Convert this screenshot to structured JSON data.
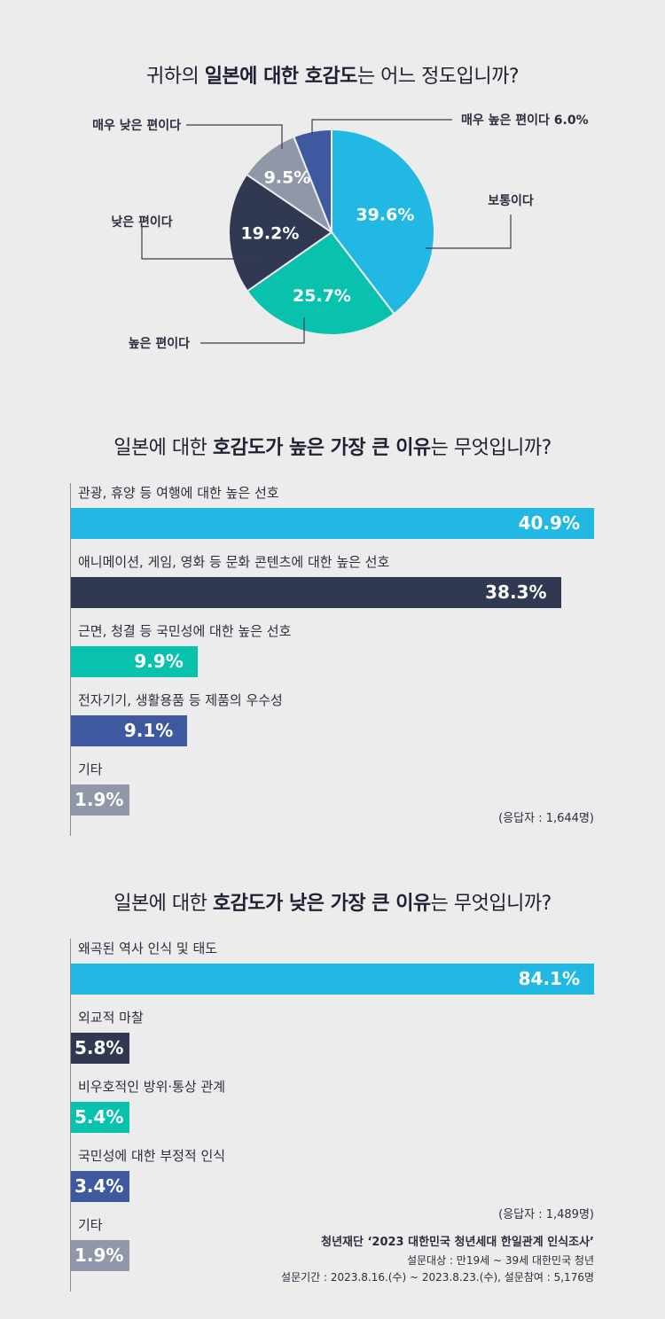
{
  "pie_question": {
    "pre": "귀하의 ",
    "bold": "일본에 대한 호감도",
    "post": "는 어느 정도입니까?"
  },
  "high_question": {
    "pre": "일본에 대한 ",
    "bold1": "호감도가 높은 가장 큰 이유",
    "post": "는 무엇입니까?"
  },
  "low_question": {
    "pre": "일본에 대한 ",
    "bold1": "호감도가 낮은 가장 큰 이유",
    "post": "는 무엇입니까?"
  },
  "high_respondents": "(응답자 : 1,644명)",
  "low_respondents": "(응답자 : 1,489명)",
  "source": {
    "title": "청년재단 ‘2023 대한민국 청년세대 한일관계 인식조사’",
    "target": "설문대상 : 만19세 ~ 39세 대한민국 청년",
    "period": "설문기간 : 2023.8.16.(수) ~ 2023.8.23.(수), 설문참여 : 5,176명"
  },
  "colors": {
    "sky": "#22b8e4",
    "navy": "#313852",
    "teal": "#08c2ae",
    "blue": "#3e599f",
    "gray": "#8f97a9"
  },
  "chart_data": [
    {
      "type": "pie",
      "title": "귀하의 일본에 대한 호감도는 어느 정도입니까?",
      "slices": [
        {
          "label": "보통이다",
          "value": 39.6,
          "value_label": "39.6%",
          "color": "#22b8e4"
        },
        {
          "label": "높은 편이다",
          "value": 25.7,
          "value_label": "25.7%",
          "color": "#08c2ae"
        },
        {
          "label": "낮은 편이다",
          "value": 19.2,
          "value_label": "19.2%",
          "color": "#313852"
        },
        {
          "label": "매우 낮은 편이다",
          "value": 9.5,
          "value_label": "9.5%",
          "color": "#8f97a9"
        },
        {
          "label": "매우 높은 편이다",
          "value": 6.0,
          "value_label": "6.0%",
          "color": "#3e599f"
        }
      ]
    },
    {
      "type": "bar",
      "orientation": "horizontal",
      "title": "일본에 대한 호감도가 높은 가장 큰 이유는 무엇입니까?",
      "categories": [
        "관광, 휴양 등 여행에 대한 높은 선호",
        "애니메이션, 게임, 영화 등 문화 콘텐츠에 대한 높은 선호",
        "근면, 청결 등 국민성에 대한 높은 선호",
        "전자기기, 생활용품 등 제품의 우수성",
        "기타"
      ],
      "values": [
        40.9,
        38.3,
        9.9,
        9.1,
        1.9
      ],
      "value_labels": [
        "40.9%",
        "38.3%",
        "9.9%",
        "9.1%",
        "1.9%"
      ],
      "colors": [
        "#22b8e4",
        "#313852",
        "#08c2ae",
        "#3e599f",
        "#8f97a9"
      ]
    },
    {
      "type": "bar",
      "orientation": "horizontal",
      "title": "일본에 대한 호감도가 낮은 가장 큰 이유는 무엇입니까?",
      "categories": [
        "왜곡된 역사 인식 및 태도",
        "외교적 마찰",
        "비우호적인 방위·통상 관계",
        "국민성에 대한 부정적 인식",
        "기타"
      ],
      "values": [
        84.1,
        5.8,
        5.4,
        3.4,
        1.9
      ],
      "value_labels": [
        "84.1%",
        "5.8%",
        "5.4%",
        "3.4%",
        "1.9%"
      ],
      "colors": [
        "#22b8e4",
        "#313852",
        "#08c2ae",
        "#3e599f",
        "#8f97a9"
      ]
    }
  ]
}
